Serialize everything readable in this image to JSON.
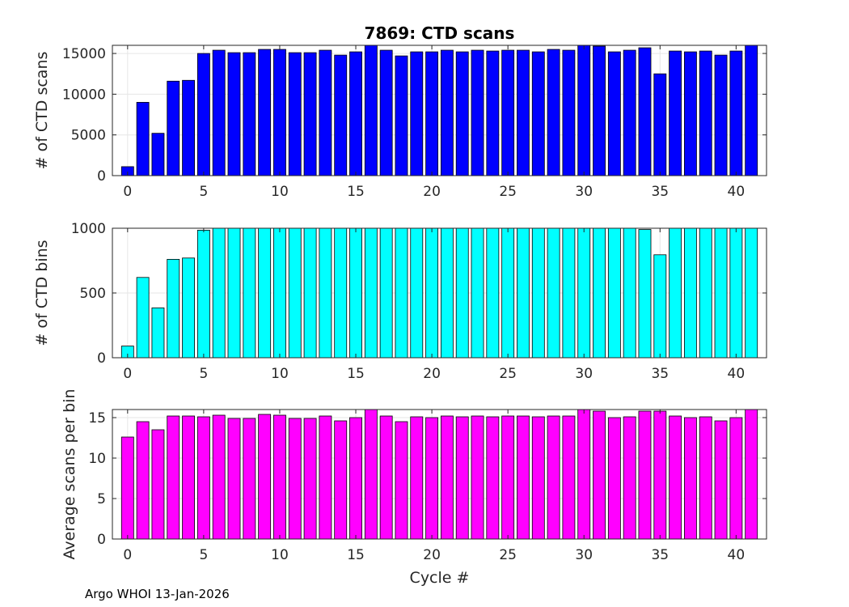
{
  "footer": "Argo WHOI 13-Jan-2026",
  "chart_data": [
    {
      "type": "bar",
      "title": "7869: CTD scans",
      "xlabel": "",
      "ylabel": "# of CTD scans",
      "bar_color": "#0000ff",
      "xlim": [
        -1,
        42
      ],
      "ylim": [
        0,
        16000
      ],
      "xticks": [
        0,
        5,
        10,
        15,
        20,
        25,
        30,
        35,
        40
      ],
      "yticks": [
        0,
        5000,
        10000,
        15000
      ],
      "grid": true,
      "x": [
        0,
        1,
        2,
        3,
        4,
        5,
        6,
        7,
        8,
        9,
        10,
        11,
        12,
        13,
        14,
        15,
        16,
        17,
        18,
        19,
        20,
        21,
        22,
        23,
        24,
        25,
        26,
        27,
        28,
        29,
        30,
        31,
        32,
        33,
        34,
        35,
        36,
        37,
        38,
        39,
        40,
        41
      ],
      "values": [
        1100,
        9000,
        5200,
        11600,
        11700,
        15000,
        15400,
        15100,
        15100,
        15500,
        15500,
        15100,
        15100,
        15400,
        14800,
        15200,
        16000,
        15400,
        14700,
        15200,
        15200,
        15400,
        15200,
        15400,
        15300,
        15400,
        15400,
        15200,
        15500,
        15400,
        16000,
        15900,
        15200,
        15400,
        15700,
        12500,
        15300,
        15200,
        15300,
        14800,
        15300,
        16000
      ]
    },
    {
      "type": "bar",
      "title": "",
      "xlabel": "",
      "ylabel": "# of CTD bins",
      "bar_color": "#00ffff",
      "xlim": [
        -1,
        42
      ],
      "ylim": [
        0,
        1000
      ],
      "xticks": [
        0,
        5,
        10,
        15,
        20,
        25,
        30,
        35,
        40
      ],
      "yticks": [
        0,
        500,
        1000
      ],
      "grid": true,
      "x": [
        0,
        1,
        2,
        3,
        4,
        5,
        6,
        7,
        8,
        9,
        10,
        11,
        12,
        13,
        14,
        15,
        16,
        17,
        18,
        19,
        20,
        21,
        22,
        23,
        24,
        25,
        26,
        27,
        28,
        29,
        30,
        31,
        32,
        33,
        34,
        35,
        36,
        37,
        38,
        39,
        40,
        41
      ],
      "values": [
        90,
        620,
        385,
        760,
        770,
        985,
        1000,
        1000,
        1000,
        1000,
        1000,
        1000,
        1000,
        1000,
        1000,
        1000,
        1000,
        1000,
        1000,
        1000,
        1000,
        1000,
        1000,
        1000,
        1000,
        1000,
        1000,
        1000,
        1000,
        1000,
        1000,
        1000,
        1000,
        1000,
        990,
        795,
        1000,
        1000,
        1000,
        1000,
        1000,
        1000
      ]
    },
    {
      "type": "bar",
      "title": "",
      "xlabel": "Cycle #",
      "ylabel": "Average scans per bin",
      "bar_color": "#ff00ff",
      "xlim": [
        -1,
        42
      ],
      "ylim": [
        0,
        16
      ],
      "xticks": [
        0,
        5,
        10,
        15,
        20,
        25,
        30,
        35,
        40
      ],
      "yticks": [
        0,
        5,
        10,
        15
      ],
      "grid": true,
      "x": [
        0,
        1,
        2,
        3,
        4,
        5,
        6,
        7,
        8,
        9,
        10,
        11,
        12,
        13,
        14,
        15,
        16,
        17,
        18,
        19,
        20,
        21,
        22,
        23,
        24,
        25,
        26,
        27,
        28,
        29,
        30,
        31,
        32,
        33,
        34,
        35,
        36,
        37,
        38,
        39,
        40,
        41
      ],
      "values": [
        12.6,
        14.5,
        13.5,
        15.2,
        15.2,
        15.1,
        15.3,
        14.9,
        14.9,
        15.4,
        15.3,
        14.9,
        14.9,
        15.2,
        14.6,
        15.0,
        16.0,
        15.2,
        14.5,
        15.1,
        15.0,
        15.2,
        15.1,
        15.2,
        15.1,
        15.2,
        15.2,
        15.1,
        15.2,
        15.2,
        16.0,
        15.8,
        15.0,
        15.1,
        15.8,
        15.8,
        15.2,
        15.0,
        15.1,
        14.6,
        15.0,
        16.0
      ]
    }
  ]
}
